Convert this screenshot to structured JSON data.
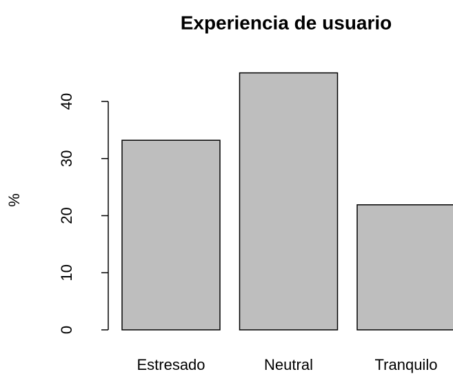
{
  "chart_data": {
    "type": "bar",
    "title": "Experiencia de usuario",
    "y_label": "%",
    "categories": [
      "Estresado",
      "Neutral",
      "Tranquilo"
    ],
    "values": [
      33.2,
      45,
      21.9
    ],
    "color": "#bebebe",
    "ylim": [
      0,
      45
    ],
    "yticks": [
      0,
      10,
      20,
      30,
      40
    ]
  }
}
